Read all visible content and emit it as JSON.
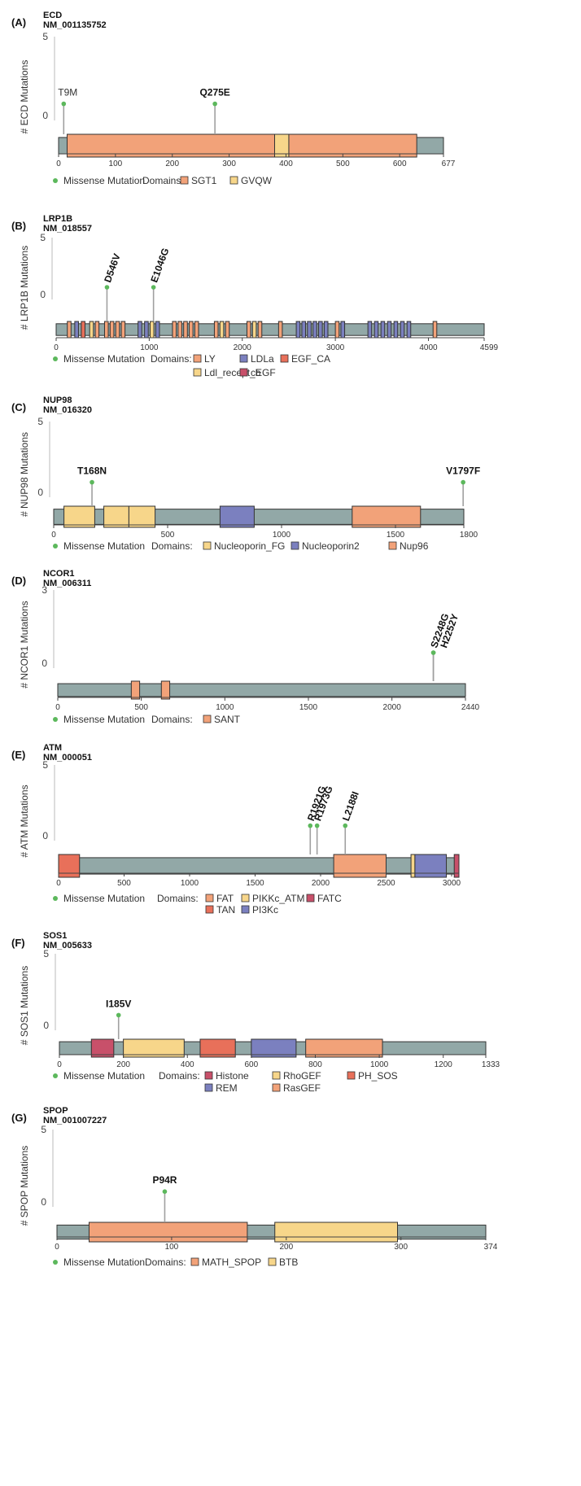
{
  "colors": {
    "backbone": "#92a8a7",
    "mutation": "#5cb85c",
    "stem": "#a0a0a0",
    "SGT1": "#f2a279",
    "GVQW": "#f7d68a",
    "LY": "#f2a279",
    "LDLa": "#7b80bf",
    "EGF_CA": "#e8705a",
    "Ldl_recept_b": "#f7d68a",
    "cEGF": "#c8506a",
    "Nucleoporin_FG": "#f7d68a",
    "Nucleoporin2": "#7b80bf",
    "Nup96": "#f2a279",
    "SANT": "#f2a279",
    "FAT": "#f2a279",
    "PIKKc_ATM": "#f7d68a",
    "FATC": "#c8506a",
    "TAN": "#e8705a",
    "PI3Kc": "#7b80bf",
    "Histone": "#c8506a",
    "RhoGEF": "#f7d68a",
    "PH_SOS": "#e8705a",
    "REM": "#7b80bf",
    "RasGEF": "#f2a279",
    "MATH_SPOP": "#f2a279",
    "BTB": "#f7d68a"
  },
  "chart_data": [
    {
      "type": "lollipop",
      "panel": "(A)",
      "gene": "ECD",
      "transcript": "NM_001135752",
      "ylabel": "# ECD Mutations",
      "yticks": [
        "5",
        "0"
      ],
      "length": 677,
      "xticks": [
        0,
        100,
        200,
        300,
        400,
        500,
        600,
        677
      ],
      "mutations": [
        {
          "label": "T9M",
          "pos": 9,
          "count": 1
        },
        {
          "label": "Q275E",
          "pos": 275,
          "count": 1
        }
      ],
      "domains": [
        {
          "name": "SGT1",
          "start": 15,
          "end": 380
        },
        {
          "name": "GVQW",
          "start": 380,
          "end": 405
        },
        {
          "name": "SGT1",
          "start": 405,
          "end": 630
        }
      ],
      "legend": {
        "mutation_label": "Missense Mutation",
        "domains_label": "Domains:",
        "items": [
          "SGT1",
          "GVQW"
        ]
      }
    },
    {
      "type": "lollipop",
      "panel": "(B)",
      "gene": "LRP1B",
      "transcript": "NM_018557",
      "ylabel": "# LRP1B Mutations",
      "yticks": [
        "5",
        "0"
      ],
      "length": 4599,
      "xticks": [
        0,
        1000,
        2000,
        3000,
        4000,
        4599
      ],
      "mutations": [
        {
          "label": "D546V",
          "pos": 546,
          "count": 1
        },
        {
          "label": "E1046G",
          "pos": 1046,
          "count": 1
        }
      ],
      "domains": [
        {
          "name": "LY",
          "start": 120,
          "end": 160
        },
        {
          "name": "LDLa",
          "start": 200,
          "end": 240
        },
        {
          "name": "EGF_CA",
          "start": 270,
          "end": 310
        },
        {
          "name": "Ldl_recept_b",
          "start": 360,
          "end": 400
        },
        {
          "name": "LY",
          "start": 420,
          "end": 460
        },
        {
          "name": "LY",
          "start": 520,
          "end": 560
        },
        {
          "name": "LY",
          "start": 580,
          "end": 620
        },
        {
          "name": "LY",
          "start": 640,
          "end": 680
        },
        {
          "name": "LY",
          "start": 700,
          "end": 740
        },
        {
          "name": "LDLa",
          "start": 880,
          "end": 920
        },
        {
          "name": "LDLa",
          "start": 950,
          "end": 990
        },
        {
          "name": "Ldl_recept_b",
          "start": 1010,
          "end": 1050
        },
        {
          "name": "LDLa",
          "start": 1070,
          "end": 1110
        },
        {
          "name": "LY",
          "start": 1250,
          "end": 1290
        },
        {
          "name": "LY",
          "start": 1310,
          "end": 1350
        },
        {
          "name": "LY",
          "start": 1370,
          "end": 1410
        },
        {
          "name": "LY",
          "start": 1430,
          "end": 1470
        },
        {
          "name": "LY",
          "start": 1490,
          "end": 1530
        },
        {
          "name": "LY",
          "start": 1700,
          "end": 1740
        },
        {
          "name": "Ldl_recept_b",
          "start": 1760,
          "end": 1800
        },
        {
          "name": "LY",
          "start": 1820,
          "end": 1860
        },
        {
          "name": "LY",
          "start": 2050,
          "end": 2090
        },
        {
          "name": "Ldl_recept_b",
          "start": 2110,
          "end": 2150
        },
        {
          "name": "LY",
          "start": 2170,
          "end": 2210
        },
        {
          "name": "LY",
          "start": 2390,
          "end": 2430
        },
        {
          "name": "LDLa",
          "start": 2580,
          "end": 2620
        },
        {
          "name": "LDLa",
          "start": 2640,
          "end": 2680
        },
        {
          "name": "LDLa",
          "start": 2700,
          "end": 2740
        },
        {
          "name": "LDLa",
          "start": 2760,
          "end": 2800
        },
        {
          "name": "LDLa",
          "start": 2820,
          "end": 2860
        },
        {
          "name": "LDLa",
          "start": 2880,
          "end": 2920
        },
        {
          "name": "LY",
          "start": 3000,
          "end": 3040
        },
        {
          "name": "LDLa",
          "start": 3060,
          "end": 3100
        },
        {
          "name": "LDLa",
          "start": 3350,
          "end": 3390
        },
        {
          "name": "LDLa",
          "start": 3420,
          "end": 3460
        },
        {
          "name": "LDLa",
          "start": 3490,
          "end": 3530
        },
        {
          "name": "LDLa",
          "start": 3560,
          "end": 3600
        },
        {
          "name": "LDLa",
          "start": 3630,
          "end": 3670
        },
        {
          "name": "LDLa",
          "start": 3700,
          "end": 3740
        },
        {
          "name": "LDLa",
          "start": 3770,
          "end": 3810
        },
        {
          "name": "LY",
          "start": 4050,
          "end": 4090
        }
      ],
      "legend": {
        "mutation_label": "Missense Mutation",
        "domains_label": "Domains:",
        "items": [
          "LY",
          "LDLa",
          "EGF_CA",
          "Ldl_recept_b",
          "cEGF"
        ]
      }
    },
    {
      "type": "lollipop",
      "panel": "(C)",
      "gene": "NUP98",
      "transcript": "NM_016320",
      "ylabel": "# NUP98 Mutations",
      "yticks": [
        "5",
        "0"
      ],
      "length": 1800,
      "xticks": [
        0,
        500,
        1000,
        1500,
        1800
      ],
      "mutations": [
        {
          "label": "T168N",
          "pos": 168,
          "count": 1
        },
        {
          "label": "V1797F",
          "pos": 1797,
          "count": 1
        }
      ],
      "domains": [
        {
          "name": "Nucleoporin_FG",
          "start": 45,
          "end": 180
        },
        {
          "name": "Nucleoporin_FG",
          "start": 220,
          "end": 330
        },
        {
          "name": "Nucleoporin_FG",
          "start": 330,
          "end": 445
        },
        {
          "name": "Nucleoporin2",
          "start": 730,
          "end": 880
        },
        {
          "name": "Nup96",
          "start": 1310,
          "end": 1610
        }
      ],
      "legend": {
        "mutation_label": "Missense Mutation",
        "domains_label": "Domains:",
        "items": [
          "Nucleoporin_FG",
          "Nucleoporin2",
          "Nup96"
        ]
      }
    },
    {
      "type": "lollipop",
      "panel": "(D)",
      "gene": "NCOR1",
      "transcript": "NM_006311",
      "ylabel": "# NCOR1 Mutations",
      "yticks": [
        "3",
        "0"
      ],
      "length": 2440,
      "xticks": [
        0,
        500,
        1000,
        1500,
        2000,
        2440
      ],
      "mutations": [
        {
          "label": "S2248G",
          "pos": 2248,
          "count": 1
        },
        {
          "label": "H2252Y",
          "pos": 2252,
          "count": 1
        }
      ],
      "domains": [
        {
          "name": "SANT",
          "start": 440,
          "end": 490
        },
        {
          "name": "SANT",
          "start": 620,
          "end": 670
        }
      ],
      "legend": {
        "mutation_label": "Missense Mutation",
        "domains_label": "Domains:",
        "items": [
          "SANT"
        ]
      }
    },
    {
      "type": "lollipop",
      "panel": "(E)",
      "gene": "ATM",
      "transcript": "NM_000051",
      "ylabel": "# ATM Mutations",
      "yticks": [
        "5",
        "0"
      ],
      "length": 3056,
      "xticks": [
        0,
        500,
        1000,
        1500,
        2000,
        2500,
        3000
      ],
      "mutations": [
        {
          "label": "R1921G",
          "pos": 1921,
          "count": 1
        },
        {
          "label": "R1973G",
          "pos": 1973,
          "count": 1
        },
        {
          "label": "L2188I",
          "pos": 2188,
          "count": 1
        }
      ],
      "domains": [
        {
          "name": "TAN",
          "start": 0,
          "end": 160
        },
        {
          "name": "FAT",
          "start": 2100,
          "end": 2500
        },
        {
          "name": "PIKKc_ATM",
          "start": 2690,
          "end": 2720
        },
        {
          "name": "PI3Kc",
          "start": 2720,
          "end": 2960
        },
        {
          "name": "FATC",
          "start": 3020,
          "end": 3056
        }
      ],
      "legend": {
        "mutation_label": "Missense Mutation",
        "domains_label": "Domains:",
        "items": [
          "FAT",
          "PIKKc_ATM",
          "FATC",
          "TAN",
          "PI3Kc"
        ]
      }
    },
    {
      "type": "lollipop",
      "panel": "(F)",
      "gene": "SOS1",
      "transcript": "NM_005633",
      "ylabel": "# SOS1 Mutations",
      "yticks": [
        "5",
        "0"
      ],
      "length": 1333,
      "xticks": [
        0,
        200,
        400,
        600,
        800,
        1000,
        1200,
        1333
      ],
      "mutations": [
        {
          "label": "I185V",
          "pos": 185,
          "count": 1
        }
      ],
      "domains": [
        {
          "name": "Histone",
          "start": 100,
          "end": 170
        },
        {
          "name": "RhoGEF",
          "start": 200,
          "end": 390
        },
        {
          "name": "PH_SOS",
          "start": 440,
          "end": 550
        },
        {
          "name": "REM",
          "start": 600,
          "end": 740
        },
        {
          "name": "RasGEF",
          "start": 770,
          "end": 1010
        }
      ],
      "legend": {
        "mutation_label": "Missense Mutation",
        "domains_label": "Domains:",
        "items": [
          "Histone",
          "RhoGEF",
          "PH_SOS",
          "REM",
          "RasGEF"
        ]
      }
    },
    {
      "type": "lollipop",
      "panel": "(G)",
      "gene": "SPOP",
      "transcript": "NM_001007227",
      "ylabel": "# SPOP Mutations",
      "yticks": [
        "5",
        "0"
      ],
      "length": 374,
      "xticks": [
        0,
        100,
        200,
        300,
        374
      ],
      "mutations": [
        {
          "label": "P94R",
          "pos": 94,
          "count": 1
        }
      ],
      "domains": [
        {
          "name": "MATH_SPOP",
          "start": 28,
          "end": 166
        },
        {
          "name": "BTB",
          "start": 190,
          "end": 297
        }
      ],
      "legend": {
        "mutation_label": "Missense Mutation",
        "domains_label": "Domains:",
        "items": [
          "MATH_SPOP",
          "BTB"
        ]
      }
    }
  ]
}
